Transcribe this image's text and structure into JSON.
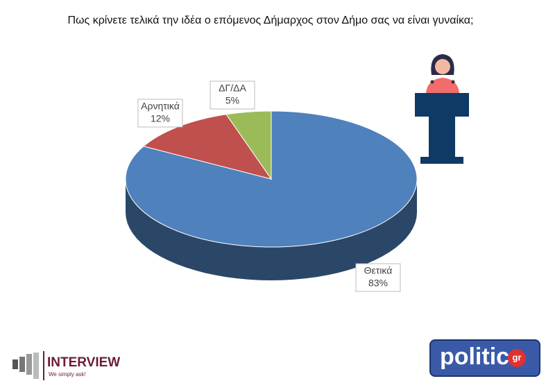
{
  "chart_data": {
    "type": "pie3d",
    "title": "Πως κρίνετε τελικά την ιδέα ο επόμενος Δήμαρχος στον Δήμο σας να είναι γυναίκα;",
    "categories": [
      "Θετικά",
      "Αρνητικά",
      "ΔΓ/ΔΑ"
    ],
    "values": [
      83,
      12,
      5
    ],
    "value_labels": [
      "83%",
      "12%",
      "5%"
    ],
    "colors": [
      "#4f81bd",
      "#c0504d",
      "#9bbb59"
    ]
  },
  "logos": {
    "interview": "INTERVIEW",
    "interview_tagline": "We simply ask!",
    "politic": "politic",
    "politic_suffix": "gr"
  }
}
